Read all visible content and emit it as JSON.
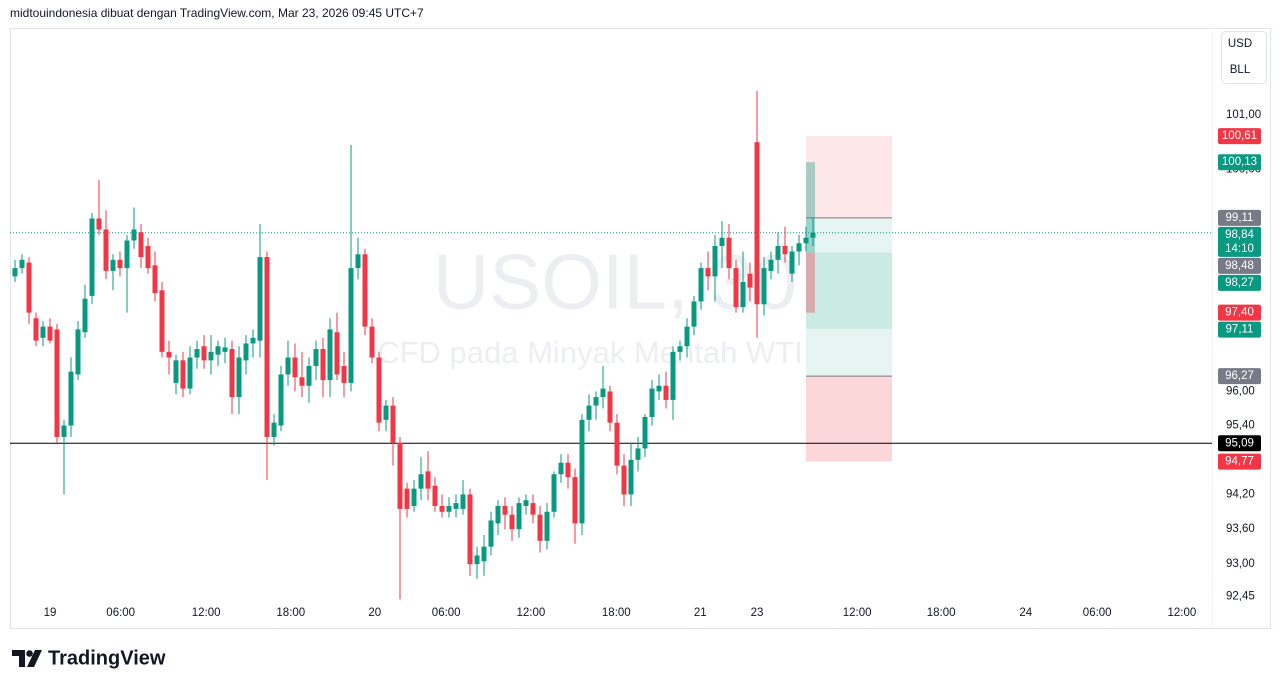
{
  "header": {
    "text": "midtouindonesia dibuat dengan TradingView.com, Mar 23, 2026 09:45 UTC+7"
  },
  "footer": {
    "brand": "TradingView"
  },
  "chart_data": {
    "type": "candlestick",
    "symbol": "USOIL, 30",
    "description": "CFD pada Minyak Mentah WTI",
    "currency": "USD",
    "unit": "BLL",
    "log_scale": true,
    "up_color": "#089981",
    "down_color": "#f23645",
    "xlim": [
      -0.714,
      171
    ],
    "xticks": [
      {
        "value": 5,
        "label": "19"
      },
      {
        "value": 15.1,
        "label": "06:00"
      },
      {
        "value": 27.3,
        "label": "12:00"
      },
      {
        "value": 39.4,
        "label": "18:00"
      },
      {
        "value": 51.4,
        "label": "20"
      },
      {
        "value": 61.6,
        "label": "06:00"
      },
      {
        "value": 73.7,
        "label": "12:00"
      },
      {
        "value": 85.9,
        "label": "18:00"
      },
      {
        "value": 97.9,
        "label": "21"
      },
      {
        "value": 106,
        "label": "23"
      },
      {
        "value": 120.3,
        "label": "12:00"
      },
      {
        "value": 132.3,
        "label": "18:00"
      },
      {
        "value": 144.4,
        "label": "24"
      },
      {
        "value": 154.6,
        "label": "06:00"
      },
      {
        "value": 166.7,
        "label": "12:00"
      }
    ],
    "ylim": [
      92.39,
      102.63
    ],
    "yticks": [
      {
        "value": 101,
        "label": "101,00"
      },
      {
        "value": 100,
        "label": "100,00"
      },
      {
        "value": 96,
        "label": "96,00"
      },
      {
        "value": 95.4,
        "label": "95,40"
      },
      {
        "value": 94.2,
        "label": "94,20"
      },
      {
        "value": 93.6,
        "label": "93,60"
      },
      {
        "value": 93,
        "label": "93,00"
      },
      {
        "value": 92.45,
        "label": "92,45"
      }
    ],
    "ohlc": [
      [
        98.05,
        98.35,
        97.95,
        98.2
      ],
      [
        98.2,
        98.45,
        98.1,
        98.35
      ],
      [
        98.3,
        98.4,
        97.2,
        97.4
      ],
      [
        97.3,
        97.4,
        96.8,
        96.9
      ],
      [
        96.95,
        97.25,
        96.8,
        97.15
      ],
      [
        97.15,
        97.3,
        96.85,
        96.9
      ],
      [
        97.1,
        97.2,
        95.1,
        95.2
      ],
      [
        95.2,
        95.5,
        94.2,
        95.4
      ],
      [
        95.4,
        96.6,
        95.2,
        96.35
      ],
      [
        96.3,
        97.25,
        96.2,
        97.1
      ],
      [
        97.05,
        97.9,
        96.95,
        97.65
      ],
      [
        97.7,
        99.2,
        97.55,
        99.1
      ],
      [
        99.1,
        99.8,
        98.8,
        98.9
      ],
      [
        98.9,
        99.25,
        98.0,
        98.15
      ],
      [
        98.15,
        98.45,
        97.8,
        98.35
      ],
      [
        98.35,
        98.5,
        98.05,
        98.2
      ],
      [
        98.2,
        98.8,
        97.4,
        98.7
      ],
      [
        98.7,
        99.3,
        98.55,
        98.9
      ],
      [
        98.85,
        99.0,
        98.2,
        98.4
      ],
      [
        98.6,
        98.75,
        98.1,
        98.2
      ],
      [
        98.25,
        98.5,
        97.6,
        97.75
      ],
      [
        97.8,
        97.95,
        96.6,
        96.7
      ],
      [
        96.7,
        96.9,
        96.3,
        96.6
      ],
      [
        96.15,
        96.65,
        95.95,
        96.55
      ],
      [
        96.55,
        96.7,
        95.9,
        96.05
      ],
      [
        96.05,
        96.8,
        95.95,
        96.6
      ],
      [
        96.6,
        96.9,
        96.4,
        96.75
      ],
      [
        96.8,
        97.0,
        96.4,
        96.55
      ],
      [
        96.55,
        97.0,
        96.3,
        96.7
      ],
      [
        96.65,
        96.9,
        96.45,
        96.8
      ],
      [
        96.7,
        96.95,
        96.5,
        96.78
      ],
      [
        96.75,
        96.9,
        95.6,
        95.9
      ],
      [
        95.9,
        96.8,
        95.6,
        96.6
      ],
      [
        96.55,
        97.0,
        96.3,
        96.85
      ],
      [
        96.85,
        97.1,
        96.6,
        96.95
      ],
      [
        96.9,
        99.0,
        96.6,
        98.4
      ],
      [
        98.4,
        98.5,
        94.45,
        95.2
      ],
      [
        95.2,
        95.6,
        95.05,
        95.45
      ],
      [
        95.4,
        96.45,
        95.3,
        96.3
      ],
      [
        96.3,
        96.9,
        96.1,
        96.6
      ],
      [
        96.6,
        96.85,
        96.0,
        96.25
      ],
      [
        96.25,
        96.7,
        95.9,
        96.1
      ],
      [
        96.1,
        96.6,
        95.8,
        96.45
      ],
      [
        96.45,
        96.9,
        96.2,
        96.75
      ],
      [
        96.75,
        96.95,
        95.9,
        96.2
      ],
      [
        96.2,
        97.3,
        95.9,
        97.1
      ],
      [
        97.05,
        97.4,
        96.2,
        96.3
      ],
      [
        96.45,
        96.7,
        95.9,
        96.15
      ],
      [
        96.15,
        100.45,
        96.0,
        98.2
      ],
      [
        98.2,
        98.75,
        98.0,
        98.45
      ],
      [
        98.45,
        98.55,
        97.0,
        97.15
      ],
      [
        97.15,
        97.3,
        96.5,
        96.6
      ],
      [
        96.6,
        96.7,
        95.3,
        95.45
      ],
      [
        95.5,
        95.85,
        95.3,
        95.75
      ],
      [
        95.75,
        95.9,
        94.7,
        95.1
      ],
      [
        95.1,
        95.2,
        92.4,
        93.95
      ],
      [
        94.3,
        94.4,
        93.8,
        93.95
      ],
      [
        94.0,
        94.45,
        93.9,
        94.3
      ],
      [
        94.3,
        94.85,
        94.1,
        94.55
      ],
      [
        94.6,
        94.95,
        94.1,
        94.3
      ],
      [
        94.35,
        94.5,
        93.9,
        94.0
      ],
      [
        94.0,
        94.2,
        93.8,
        93.9
      ],
      [
        93.9,
        94.15,
        93.8,
        94.0
      ],
      [
        93.95,
        94.2,
        93.8,
        94.05
      ],
      [
        93.95,
        94.45,
        93.85,
        94.2
      ],
      [
        94.2,
        94.3,
        92.8,
        93.0
      ],
      [
        93.0,
        93.3,
        92.75,
        93.15
      ],
      [
        93.05,
        93.5,
        92.8,
        93.3
      ],
      [
        93.3,
        93.9,
        93.15,
        93.75
      ],
      [
        93.7,
        94.1,
        93.5,
        94.0
      ],
      [
        94.0,
        94.15,
        93.6,
        93.85
      ],
      [
        93.85,
        94.0,
        93.4,
        93.6
      ],
      [
        93.6,
        94.15,
        93.45,
        94.05
      ],
      [
        94.0,
        94.2,
        93.85,
        94.1
      ],
      [
        94.05,
        94.2,
        93.7,
        93.85
      ],
      [
        93.85,
        94.0,
        93.2,
        93.4
      ],
      [
        93.4,
        94.05,
        93.25,
        93.9
      ],
      [
        93.9,
        94.6,
        93.8,
        94.55
      ],
      [
        94.55,
        94.9,
        94.4,
        94.75
      ],
      [
        94.75,
        94.9,
        94.3,
        94.5
      ],
      [
        94.5,
        94.65,
        93.35,
        93.7
      ],
      [
        93.7,
        95.6,
        93.5,
        95.5
      ],
      [
        95.5,
        95.95,
        95.3,
        95.75
      ],
      [
        95.75,
        96.0,
        95.5,
        95.9
      ],
      [
        95.9,
        96.45,
        95.7,
        96.05
      ],
      [
        96.0,
        96.1,
        95.3,
        95.45
      ],
      [
        95.45,
        95.6,
        94.55,
        94.7
      ],
      [
        94.7,
        94.9,
        94.0,
        94.2
      ],
      [
        94.2,
        95.1,
        94.0,
        94.8
      ],
      [
        94.8,
        95.2,
        94.6,
        95.0
      ],
      [
        95.0,
        95.6,
        94.85,
        95.55
      ],
      [
        95.55,
        96.2,
        95.4,
        96.05
      ],
      [
        96.0,
        96.3,
        95.85,
        96.1
      ],
      [
        96.1,
        96.35,
        95.7,
        95.85
      ],
      [
        95.85,
        96.8,
        95.5,
        96.7
      ],
      [
        96.7,
        96.9,
        96.55,
        96.8
      ],
      [
        96.8,
        97.3,
        96.6,
        97.15
      ],
      [
        97.15,
        97.7,
        97.0,
        97.6
      ],
      [
        97.6,
        98.3,
        97.45,
        98.2
      ],
      [
        98.2,
        98.5,
        97.8,
        98.05
      ],
      [
        98.05,
        98.8,
        97.6,
        98.6
      ],
      [
        98.6,
        99.05,
        98.2,
        98.75
      ],
      [
        98.75,
        99.0,
        98.0,
        98.2
      ],
      [
        98.2,
        98.35,
        97.4,
        97.5
      ],
      [
        97.5,
        98.5,
        97.4,
        97.95
      ],
      [
        98.1,
        98.3,
        97.6,
        97.85
      ],
      [
        100.5,
        101.45,
        96.95,
        97.55
      ],
      [
        97.55,
        98.4,
        97.35,
        98.2
      ],
      [
        98.15,
        98.5,
        98.0,
        98.35
      ],
      [
        98.35,
        98.85,
        98.1,
        98.6
      ],
      [
        98.6,
        98.95,
        98.3,
        98.45
      ],
      [
        98.1,
        98.6,
        97.95,
        98.5
      ],
      [
        98.5,
        98.8,
        98.25,
        98.65
      ],
      [
        98.65,
        98.95,
        98.5,
        98.75
      ],
      [
        98.75,
        99.11,
        98.6,
        98.84
      ]
    ],
    "price_labels": [
      {
        "value": 100.61,
        "label": "100,61",
        "color": "#f23645"
      },
      {
        "value": 100.13,
        "label": "100,13",
        "color": "#089981"
      },
      {
        "value": 99.11,
        "label": "99,11",
        "color": "#787b86"
      },
      {
        "value": 98.84,
        "label": "98,84",
        "sublabel": "14:10",
        "color": "#089981"
      },
      {
        "value": 98.48,
        "label": "98,48",
        "color": "#787b86"
      },
      {
        "value": 98.27,
        "label": "98,27",
        "color": "#089981"
      },
      {
        "value": 97.4,
        "label": "97,40",
        "color": "#f23645"
      },
      {
        "value": 97.11,
        "label": "97,11",
        "color": "#089981"
      },
      {
        "value": 96.27,
        "label": "96,27",
        "color": "#787b86"
      },
      {
        "value": 95.09,
        "label": "95,09",
        "color": "#000000"
      },
      {
        "value": 94.77,
        "label": "94,77",
        "color": "#f23645"
      }
    ]
  }
}
